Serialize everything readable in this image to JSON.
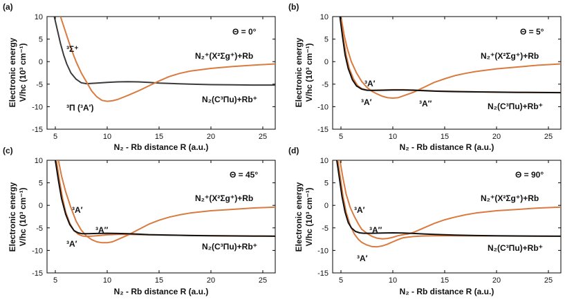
{
  "chart_data": [
    {
      "id": "a",
      "type": "line",
      "panel_label": "(a)",
      "angle_label": "Θ = 0°",
      "xlabel": "N₂ - Rb distance  R (a.u.)",
      "ylabel_top": "Electronic energy",
      "ylabel_bottom": "V/hc (10³ cm⁻¹)",
      "xlim": [
        4.2,
        26.2
      ],
      "ylim": [
        -15,
        10
      ],
      "xticks": [
        "5",
        "10",
        "15",
        "20",
        "25"
      ],
      "yticks": [
        "-15",
        "-10",
        "-5",
        "0",
        "5",
        "10"
      ],
      "asymptote_upper": "N₂⁺(X²Σg⁺)+Rb",
      "asymptote_lower": "N₂(C³Πu)+Rb⁺",
      "curve_labels": [
        {
          "text": "³Σ⁺",
          "color": "#222222"
        },
        {
          "text": "³Π (³A′)",
          "color": "#d97a3e"
        }
      ],
      "series": [
        {
          "name": "3Sigma+",
          "color": "#3a3a3a",
          "x": [
            4.9,
            5.2,
            5.5,
            5.8,
            6.1,
            6.5,
            7.0,
            7.5,
            8.0,
            9.0,
            10.0,
            11.0,
            12.0,
            13.0,
            14.0,
            15.0,
            16.0,
            18.0,
            20.0,
            22.0,
            24.0,
            26.2
          ],
          "y": [
            10,
            7,
            4,
            1.5,
            -0.5,
            -2.5,
            -3.9,
            -4.7,
            -4.9,
            -4.75,
            -4.6,
            -4.5,
            -4.45,
            -4.5,
            -4.6,
            -4.75,
            -4.85,
            -5.0,
            -5.1,
            -5.15,
            -5.2,
            -5.2
          ]
        },
        {
          "name": "3Pi (3A')",
          "color": "#d97a3e",
          "x": [
            5.5,
            6.0,
            6.5,
            7.0,
            7.5,
            8.0,
            8.5,
            9.0,
            9.5,
            10.0,
            10.5,
            11.0,
            12.0,
            13.0,
            14.0,
            15.0,
            16.0,
            17.0,
            18.0,
            20.0,
            22.0,
            24.0,
            26.2
          ],
          "y": [
            10,
            6.5,
            3,
            0,
            -2.5,
            -4.5,
            -6.5,
            -7.8,
            -8.6,
            -8.8,
            -8.7,
            -8.4,
            -7.5,
            -6.5,
            -5.4,
            -4.3,
            -3.3,
            -2.6,
            -2.1,
            -1.5,
            -1.1,
            -0.8,
            -0.5
          ]
        }
      ]
    },
    {
      "id": "b",
      "type": "line",
      "panel_label": "(b)",
      "angle_label": "Θ = 5°",
      "xlabel": "N₂ - Rb distance  R (a.u.)",
      "ylabel_top": "Electronic energy",
      "ylabel_bottom": "V/hc (10³ cm⁻¹)",
      "xlim": [
        4.2,
        26.2
      ],
      "ylim": [
        -15,
        10
      ],
      "xticks": [
        "5",
        "10",
        "15",
        "20",
        "25"
      ],
      "yticks": [
        "-15",
        "-10",
        "-5",
        "0",
        "5",
        "10"
      ],
      "asymptote_upper": "N₂⁺(X²Σg⁺)+Rb",
      "asymptote_lower": "N₂(C³Πu)+Rb⁺",
      "curve_labels": [
        {
          "text": "³A′",
          "color": "#d97a3e"
        },
        {
          "text": "³A′",
          "color": "#d97a3e"
        },
        {
          "text": "³A′′",
          "color": "#111111"
        }
      ],
      "series": [
        {
          "name": "3A' upper",
          "color": "#d97a3e",
          "x": [
            5.0,
            5.3,
            5.6,
            6.0,
            6.5,
            7.0,
            7.5,
            8.0,
            8.5,
            9.0,
            9.5,
            10.0,
            10.5,
            11.0,
            12.0,
            13.0,
            14.0,
            15.0,
            16.0,
            17.0,
            18.0,
            20.0,
            22.0,
            24.0,
            26.2
          ],
          "y": [
            10,
            6,
            3,
            0,
            -2.5,
            -4.4,
            -5.7,
            -6.6,
            -7.2,
            -7.7,
            -8.0,
            -8.1,
            -8.0,
            -7.6,
            -6.8,
            -5.7,
            -4.6,
            -3.8,
            -3.1,
            -2.6,
            -2.2,
            -1.6,
            -1.2,
            -0.8,
            -0.5
          ]
        },
        {
          "name": "3A' lower",
          "color": "#d97a3e",
          "x": [
            4.95,
            5.2,
            5.5,
            5.8,
            6.2,
            6.6,
            7.0,
            7.5,
            8.0,
            9.0,
            10.0,
            11.0,
            12.0,
            13.0,
            14.0,
            16.0,
            18.0,
            20.0,
            22.0,
            24.0,
            26.2
          ],
          "y": [
            10,
            5.5,
            1.5,
            -1.5,
            -3.8,
            -5.3,
            -6.0,
            -6.3,
            -6.35,
            -6.3,
            -6.25,
            -6.25,
            -6.3,
            -6.4,
            -6.5,
            -6.6,
            -6.7,
            -6.75,
            -6.8,
            -6.82,
            -6.85
          ]
        },
        {
          "name": "3A''",
          "color": "#111111",
          "x": [
            4.9,
            5.15,
            5.4,
            5.7,
            6.1,
            6.5,
            7.0,
            7.5,
            8.0,
            9.0,
            10.0,
            11.0,
            12.0,
            13.0,
            14.0,
            16.0,
            18.0,
            20.0,
            22.0,
            24.0,
            26.2
          ],
          "y": [
            10,
            5.5,
            1.5,
            -1.5,
            -4.0,
            -5.4,
            -6.1,
            -6.35,
            -6.4,
            -6.35,
            -6.3,
            -6.3,
            -6.35,
            -6.45,
            -6.55,
            -6.65,
            -6.72,
            -6.78,
            -6.82,
            -6.85,
            -6.88
          ]
        }
      ]
    },
    {
      "id": "c",
      "type": "line",
      "panel_label": "(c)",
      "angle_label": "Θ = 45°",
      "xlabel": "N₂ - Rb distance  R (a.u.)",
      "ylabel_top": "Electronic energy",
      "ylabel_bottom": "V/hc (10³ cm⁻¹)",
      "xlim": [
        4.2,
        26.2
      ],
      "ylim": [
        -15,
        10
      ],
      "xticks": [
        "5",
        "10",
        "15",
        "20",
        "25"
      ],
      "yticks": [
        "-15",
        "-10",
        "-5",
        "0",
        "5",
        "10"
      ],
      "asymptote_upper": "N₂⁺(X²Σg⁺)+Rb",
      "asymptote_lower": "N₂(C³Πu)+Rb⁺",
      "curve_labels": [
        {
          "text": "³A′",
          "color": "#d97a3e"
        },
        {
          "text": "³A′′",
          "color": "#111111"
        },
        {
          "text": "³A′",
          "color": "#d97a3e"
        }
      ],
      "series": [
        {
          "name": "3A' upper",
          "color": "#d97a3e",
          "x": [
            5.3,
            5.6,
            6.0,
            6.5,
            7.0,
            7.5,
            8.0,
            8.5,
            9.0,
            9.5,
            10.0,
            10.5,
            11.0,
            12.0,
            13.0,
            14.0,
            15.0,
            16.0,
            17.0,
            18.0,
            20.0,
            22.0,
            24.0,
            26.2
          ],
          "y": [
            10,
            6.5,
            3,
            -0.5,
            -3.5,
            -5.5,
            -6.8,
            -7.6,
            -8.1,
            -8.3,
            -8.3,
            -8.1,
            -7.6,
            -6.6,
            -5.4,
            -4.2,
            -3.3,
            -2.6,
            -2.1,
            -1.7,
            -1.2,
            -0.9,
            -0.6,
            -0.4
          ]
        },
        {
          "name": "3A' lower",
          "color": "#d97a3e",
          "x": [
            5.1,
            5.4,
            5.7,
            6.0,
            6.4,
            6.8,
            7.2,
            7.6,
            8.0,
            9.0,
            10.0,
            11.0,
            12.0,
            13.0,
            14.0,
            16.0,
            18.0,
            20.0,
            22.0,
            24.0,
            26.2
          ],
          "y": [
            10,
            5.5,
            1.5,
            -1.5,
            -4.0,
            -5.6,
            -6.4,
            -6.8,
            -6.9,
            -6.75,
            -6.55,
            -6.45,
            -6.45,
            -6.5,
            -6.55,
            -6.62,
            -6.68,
            -6.72,
            -6.76,
            -6.8,
            -6.82
          ]
        },
        {
          "name": "3A''",
          "color": "#111111",
          "x": [
            5.0,
            5.3,
            5.6,
            6.0,
            6.4,
            6.8,
            7.2,
            7.6,
            8.0,
            9.0,
            10.0,
            11.0,
            12.0,
            13.0,
            14.0,
            16.0,
            18.0,
            20.0,
            22.0,
            24.0,
            26.2
          ],
          "y": [
            10,
            5.5,
            1.5,
            -2.0,
            -4.3,
            -5.6,
            -6.1,
            -6.3,
            -6.3,
            -6.25,
            -6.2,
            -6.25,
            -6.3,
            -6.4,
            -6.5,
            -6.6,
            -6.7,
            -6.75,
            -6.8,
            -6.82,
            -6.85
          ]
        }
      ]
    },
    {
      "id": "d",
      "type": "line",
      "panel_label": "(d)",
      "angle_label": "Θ = 90°",
      "xlabel": "N₂ - Rb distance  R (a.u.)",
      "ylabel_top": "Electronic energy",
      "ylabel_bottom": "V/hc (10³ cm⁻¹)",
      "xlim": [
        4.2,
        26.2
      ],
      "ylim": [
        -15,
        10
      ],
      "xticks": [
        "5",
        "10",
        "15",
        "20",
        "25"
      ],
      "yticks": [
        "-15",
        "-10",
        "-5",
        "0",
        "5",
        "10"
      ],
      "asymptote_upper": "N₂⁺(X²Σg⁺)+Rb",
      "asymptote_lower": "N₂(C³Πu)+Rb⁺",
      "curve_labels": [
        {
          "text": "³A′",
          "color": "#d97a3e"
        },
        {
          "text": "³A′′",
          "color": "#111111"
        },
        {
          "text": "³A′",
          "color": "#d97a3e"
        }
      ],
      "series": [
        {
          "name": "3A' upper",
          "color": "#d97a3e",
          "x": [
            4.9,
            5.2,
            5.5,
            5.9,
            6.3,
            6.7,
            7.0,
            7.5,
            8.0,
            8.5,
            9.0,
            9.5,
            10.0,
            10.5,
            11.0,
            11.5,
            12.0,
            13.0,
            14.0,
            15.0,
            16.0,
            17.0,
            18.0,
            20.0,
            22.0,
            24.0,
            26.2
          ],
          "y": [
            10,
            6,
            2.5,
            -0.5,
            -2.5,
            -4.2,
            -5.3,
            -6.2,
            -6.9,
            -7.3,
            -7.45,
            -7.35,
            -7.1,
            -6.75,
            -6.5,
            -6.35,
            -6.0,
            -5.0,
            -4.0,
            -3.2,
            -2.6,
            -2.1,
            -1.7,
            -1.2,
            -0.9,
            -0.6,
            -0.4
          ]
        },
        {
          "name": "3A' lower",
          "color": "#d97a3e",
          "x": [
            4.7,
            4.95,
            5.2,
            5.5,
            5.9,
            6.3,
            6.7,
            7.0,
            7.5,
            8.0,
            8.5,
            9.0,
            9.5,
            10.0,
            10.5,
            11.0,
            12.0,
            13.0,
            14.0,
            16.0,
            18.0,
            20.0,
            22.0,
            24.0,
            26.2
          ],
          "y": [
            10,
            6,
            2,
            -1.5,
            -4.5,
            -6.4,
            -7.6,
            -8.2,
            -8.8,
            -9.15,
            -9.2,
            -9.0,
            -8.6,
            -8.1,
            -7.6,
            -7.2,
            -6.9,
            -6.8,
            -6.75,
            -6.75,
            -6.78,
            -6.8,
            -6.82,
            -6.84,
            -6.85
          ]
        },
        {
          "name": "3A''",
          "color": "#111111",
          "x": [
            4.6,
            4.85,
            5.1,
            5.4,
            5.7,
            6.0,
            6.4,
            6.8,
            7.2,
            7.6,
            8.0,
            9.0,
            10.0,
            11.0,
            12.0,
            13.0,
            14.0,
            16.0,
            18.0,
            20.0,
            22.0,
            24.0,
            26.2
          ],
          "y": [
            10,
            6,
            2,
            -1.5,
            -3.8,
            -5.0,
            -5.8,
            -6.1,
            -6.2,
            -6.2,
            -6.2,
            -6.15,
            -6.1,
            -6.15,
            -6.25,
            -6.35,
            -6.45,
            -6.6,
            -6.7,
            -6.75,
            -6.8,
            -6.82,
            -6.85
          ]
        }
      ]
    }
  ]
}
